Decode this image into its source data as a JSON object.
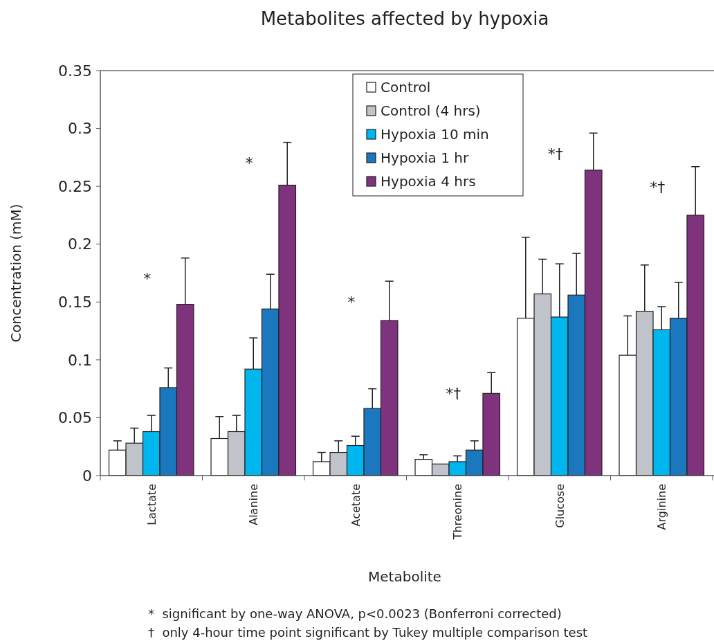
{
  "chart_data": {
    "type": "bar",
    "title": "Metabolites affected by hypoxia",
    "xlabel": "Metabolite",
    "ylabel": "Concentration (mM)",
    "categories": [
      "Lactate",
      "Alanine",
      "Acetate",
      "Threonine",
      "Glucose",
      "Arginine"
    ],
    "series": [
      {
        "name": "Control",
        "color": "#ffffff",
        "values": [
          0.022,
          0.032,
          0.012,
          0.014,
          0.136,
          0.104
        ],
        "errors": [
          [
            0.022,
            0.03
          ],
          [
            0.032,
            0.051
          ],
          [
            0.012,
            0.02
          ],
          [
            0.014,
            0.018
          ],
          [
            0.136,
            0.206
          ],
          [
            0.104,
            0.138
          ]
        ]
      },
      {
        "name": "Control (4 hrs)",
        "color": "#c0c4ca",
        "values": [
          0.028,
          0.038,
          0.02,
          0.01,
          0.157,
          0.142
        ],
        "errors": [
          [
            0.028,
            0.041
          ],
          [
            0.038,
            0.052
          ],
          [
            0.02,
            0.03
          ],
          null,
          [
            0.157,
            0.187
          ],
          [
            0.142,
            0.182
          ]
        ]
      },
      {
        "name": "Hypoxia 10 min",
        "color": "#00b6ee",
        "values": [
          0.038,
          0.092,
          0.026,
          0.012,
          0.137,
          0.126
        ],
        "errors": [
          [
            0.038,
            0.052
          ],
          [
            0.092,
            0.119
          ],
          [
            0.026,
            0.034
          ],
          [
            0.012,
            0.017
          ],
          [
            0.137,
            0.183
          ],
          [
            0.126,
            0.146
          ]
        ]
      },
      {
        "name": "Hypoxia 1 hr",
        "color": "#1b78be",
        "values": [
          0.076,
          0.144,
          0.058,
          0.022,
          0.156,
          0.136
        ],
        "errors": [
          [
            0.076,
            0.093
          ],
          [
            0.144,
            0.174
          ],
          [
            0.058,
            0.075
          ],
          [
            0.022,
            0.03
          ],
          [
            0.156,
            0.192
          ],
          [
            0.136,
            0.167
          ]
        ]
      },
      {
        "name": "Hypoxia 4 hrs",
        "color": "#7f337c",
        "values": [
          0.148,
          0.251,
          0.134,
          0.071,
          0.264,
          0.225
        ],
        "errors": [
          [
            0.148,
            0.188
          ],
          [
            0.251,
            0.288
          ],
          [
            0.134,
            0.168
          ],
          [
            0.071,
            0.089
          ],
          [
            0.264,
            0.296
          ],
          [
            0.225,
            0.267
          ]
        ]
      }
    ],
    "ylim": [
      0,
      0.35
    ],
    "yticks": [
      0,
      0.05,
      0.1,
      0.15,
      0.2,
      0.25,
      0.3,
      0.35
    ],
    "grid": false,
    "legend": "top",
    "annotations": [
      "*",
      "*",
      "*",
      "*†",
      "*†",
      "*†",
      "*  significant by one-way ANOVA, p<0.0023 (Bonferroni corrected)",
      "†  only 4-hour time point significant by Tukey multiple comparison test"
    ]
  }
}
